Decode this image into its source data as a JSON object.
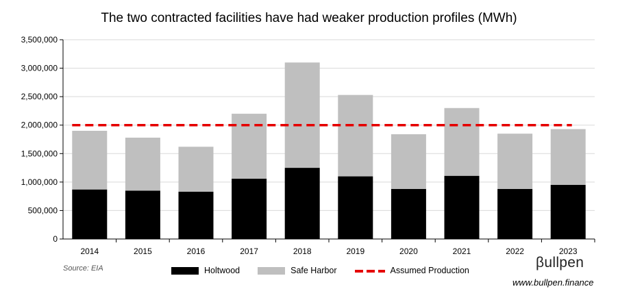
{
  "title": "The two contracted facilities have had weaker production profiles (MWh)",
  "source": "Source: EIA",
  "brand": "βullpen",
  "url": "www.bullpen.finance",
  "colors": {
    "holtwood": "#000000",
    "safe_harbor": "#bfbfbf",
    "assumed": "#e50000",
    "axis": "#000000",
    "grid": "#d9d9d9"
  },
  "chart_data": {
    "type": "bar",
    "stacked": true,
    "categories": [
      "2014",
      "2015",
      "2016",
      "2017",
      "2018",
      "2019",
      "2020",
      "2021",
      "2022",
      "2023"
    ],
    "series": [
      {
        "name": "Holtwood",
        "values": [
          870000,
          850000,
          830000,
          1060000,
          1250000,
          1100000,
          880000,
          1110000,
          880000,
          950000
        ]
      },
      {
        "name": "Safe Harbor",
        "values": [
          1030000,
          930000,
          790000,
          1140000,
          1850000,
          1430000,
          960000,
          1190000,
          970000,
          980000
        ]
      }
    ],
    "reference_line": {
      "name": "Assumed Production",
      "value": 2000000
    },
    "ylim": [
      0,
      3500000
    ],
    "yticks": [
      "0",
      "500,000",
      "1,000,000",
      "1,500,000",
      "2,000,000",
      "2,500,000",
      "3,000,000",
      "3,500,000"
    ],
    "ytick_values": [
      0,
      500000,
      1000000,
      1500000,
      2000000,
      2500000,
      3000000,
      3500000
    ],
    "grid": true,
    "legend": "bottom"
  }
}
